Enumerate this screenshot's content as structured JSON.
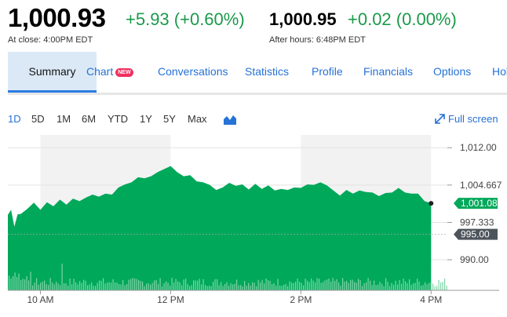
{
  "quote": {
    "price": "1,000.93",
    "change": "+5.93 (+0.60%)",
    "close_note": "At close: 4:00PM EDT",
    "after_price": "1,000.95",
    "after_change": "+0.02 (0.00%)",
    "after_note": "After hours: 6:48PM EDT",
    "positive_color": "#1a9a4a"
  },
  "tabs": [
    {
      "label": "Summary",
      "active": true
    },
    {
      "label": "Chart",
      "badge": "NEW"
    },
    {
      "label": "Conversations"
    },
    {
      "label": "Statistics"
    },
    {
      "label": "Profile"
    },
    {
      "label": "Financials"
    },
    {
      "label": "Options"
    },
    {
      "label": "Hol"
    }
  ],
  "ranges": [
    "1D",
    "5D",
    "1M",
    "6M",
    "YTD",
    "1Y",
    "5Y",
    "Max"
  ],
  "active_range": "1D",
  "chart_type_icon": "mountain-chart-icon",
  "fullscreen_label": "Full screen",
  "fullscreen_icon": "expand-arrow-icon",
  "chart_data": {
    "type": "area",
    "y_ticks": [
      "1,012.00",
      "1,004.667",
      "997.333",
      "990.00"
    ],
    "y_tick_values": [
      1012.0,
      1004.667,
      997.333,
      990.0
    ],
    "ylim": [
      984.0,
      1014.5
    ],
    "x_ticks": [
      "10 AM",
      "12 PM",
      "2 PM",
      "4 PM"
    ],
    "x_tick_hours": [
      10,
      12,
      14,
      16
    ],
    "xlim": [
      9.5,
      16.25
    ],
    "last_price_label": "1,001.08",
    "last_price": 1001.08,
    "prev_close_label": "995.00",
    "prev_close": 995.0,
    "fill_color": "#00a85a",
    "x": [
      9.5,
      9.55,
      9.6,
      9.65,
      9.7,
      9.8,
      9.9,
      10.0,
      10.1,
      10.2,
      10.3,
      10.4,
      10.5,
      10.6,
      10.7,
      10.8,
      10.9,
      11.0,
      11.1,
      11.2,
      11.3,
      11.4,
      11.5,
      11.6,
      11.7,
      11.8,
      11.9,
      12.0,
      12.1,
      12.2,
      12.3,
      12.4,
      12.5,
      12.6,
      12.7,
      12.8,
      12.9,
      13.0,
      13.1,
      13.2,
      13.3,
      13.4,
      13.5,
      13.6,
      13.7,
      13.8,
      13.9,
      14.0,
      14.1,
      14.2,
      14.3,
      14.4,
      14.5,
      14.6,
      14.7,
      14.8,
      14.9,
      15.0,
      15.1,
      15.2,
      15.3,
      15.4,
      15.5,
      15.6,
      15.7,
      15.8,
      15.9,
      16.0
    ],
    "y": [
      998.8,
      999.8,
      996.5,
      998.9,
      999.0,
      1000.0,
      1001.2,
      999.8,
      1001.3,
      1000.5,
      1001.8,
      1000.8,
      1002.0,
      1001.5,
      1002.2,
      1002.8,
      1002.4,
      1003.0,
      1002.8,
      1004.2,
      1004.8,
      1005.2,
      1006.2,
      1006.0,
      1006.4,
      1007.2,
      1007.8,
      1008.4,
      1007.2,
      1006.4,
      1006.6,
      1005.4,
      1005.2,
      1004.7,
      1003.7,
      1004.2,
      1005.1,
      1004.5,
      1004.8,
      1003.8,
      1004.9,
      1003.9,
      1004.6,
      1003.6,
      1003.9,
      1003.7,
      1004.2,
      1004.1,
      1004.8,
      1004.7,
      1005.2,
      1004.6,
      1003.6,
      1002.6,
      1003.7,
      1003.0,
      1003.6,
      1003.3,
      1003.2,
      1002.5,
      1003.1,
      1003.2,
      1004.1,
      1003.2,
      1003.0,
      1003.0,
      1001.5,
      1001.1
    ]
  }
}
